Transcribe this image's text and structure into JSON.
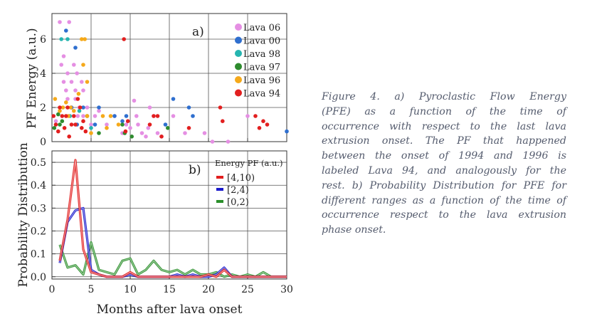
{
  "caption_lines": [
    "Figure 4. a) Pyroclastic Flow Energy",
    "(PFE) as a function of the time of",
    "occurrence with respect to the last lava",
    "extrusion onset. The PF that happened",
    "between the onset of 1994 and 1996 is",
    "labeled Lava 94, and analogously for the",
    "rest. b) Probability Distribution for PFE for",
    "different ranges as a function of the time of",
    "occurrence respect to the lava extrusion",
    "phase onset."
  ],
  "chart_data": [
    {
      "type": "scatter",
      "panel_label": "a)",
      "ylabel": "PF Energy (a.u.)",
      "xlim": [
        0,
        30
      ],
      "ylim": [
        0,
        7.5
      ],
      "xticks": [
        0,
        5,
        10,
        15,
        20,
        25,
        30
      ],
      "yticks": [
        0,
        2,
        4,
        6
      ],
      "grid": true,
      "legend_position": "top-right",
      "series": [
        {
          "name": "Lava 06",
          "color": "#e58fe3",
          "points": [
            [
              0.5,
              1.2
            ],
            [
              1.0,
              7.0
            ],
            [
              1.2,
              4.5
            ],
            [
              1.5,
              5.0
            ],
            [
              1.5,
              3.5
            ],
            [
              1.8,
              3.0
            ],
            [
              2.0,
              4.0
            ],
            [
              2.0,
              2.5
            ],
            [
              2.2,
              7.0
            ],
            [
              2.5,
              3.5
            ],
            [
              2.5,
              2.0
            ],
            [
              2.8,
              4.5
            ],
            [
              3.0,
              3.0
            ],
            [
              3.0,
              2.5
            ],
            [
              3.2,
              4.0
            ],
            [
              3.3,
              1.5
            ],
            [
              3.5,
              2.0
            ],
            [
              3.8,
              3.5
            ],
            [
              4.0,
              3.0
            ],
            [
              4.0,
              1.5
            ],
            [
              4.5,
              2.0
            ],
            [
              5.0,
              1.0
            ],
            [
              5.5,
              1.5
            ],
            [
              6.0,
              1.8
            ],
            [
              7.0,
              1.0
            ],
            [
              8.0,
              1.5
            ],
            [
              9.0,
              0.5
            ],
            [
              9.5,
              1.0
            ],
            [
              10.0,
              0.8
            ],
            [
              10.5,
              2.4
            ],
            [
              10.8,
              1.5
            ],
            [
              11.0,
              1.0
            ],
            [
              11.5,
              0.5
            ],
            [
              12.0,
              0.3
            ],
            [
              12.3,
              0.8
            ],
            [
              12.5,
              2.0
            ],
            [
              13.0,
              1.5
            ],
            [
              13.5,
              0.5
            ],
            [
              14.0,
              0.3
            ],
            [
              15.5,
              1.5
            ],
            [
              17.0,
              0.5
            ],
            [
              19.5,
              0.5
            ],
            [
              20.5,
              0.0
            ],
            [
              22.5,
              0.0
            ],
            [
              25.0,
              1.5
            ]
          ]
        },
        {
          "name": "Lava 00",
          "color": "#2f6fcf",
          "points": [
            [
              1.8,
              6.5
            ],
            [
              2.5,
              2.0
            ],
            [
              3.0,
              5.5
            ],
            [
              3.2,
              1.0
            ],
            [
              4.0,
              2.0
            ],
            [
              5.5,
              1.0
            ],
            [
              6.0,
              2.0
            ],
            [
              8.0,
              1.5
            ],
            [
              9.0,
              1.2
            ],
            [
              9.5,
              1.5
            ],
            [
              14.5,
              1.0
            ],
            [
              15.5,
              2.5
            ],
            [
              17.5,
              2.0
            ],
            [
              18.0,
              1.5
            ],
            [
              30.0,
              0.6
            ]
          ]
        },
        {
          "name": "Lava 98",
          "color": "#26b5b0",
          "points": [
            [
              1.2,
              6.0
            ],
            [
              2.0,
              6.0
            ],
            [
              2.3,
              1.5
            ],
            [
              3.5,
              1.8
            ],
            [
              5.0,
              0.8
            ]
          ]
        },
        {
          "name": "Lava 97",
          "color": "#2e8b2e",
          "points": [
            [
              0.3,
              0.8
            ],
            [
              0.8,
              1.6
            ],
            [
              1.0,
              1.0
            ],
            [
              1.3,
              1.2
            ],
            [
              4.5,
              1.5
            ],
            [
              6.0,
              0.5
            ],
            [
              9.0,
              1.0
            ],
            [
              9.3,
              0.5
            ],
            [
              10.2,
              0.3
            ],
            [
              14.8,
              0.8
            ]
          ]
        },
        {
          "name": "Lava 96",
          "color": "#f5a91a",
          "points": [
            [
              0.4,
              2.5
            ],
            [
              1.0,
              1.8
            ],
            [
              1.4,
              2.0
            ],
            [
              1.8,
              2.3
            ],
            [
              2.1,
              1.5
            ],
            [
              2.4,
              2.0
            ],
            [
              2.8,
              1.8
            ],
            [
              3.4,
              2.8
            ],
            [
              3.8,
              6.0
            ],
            [
              4.2,
              6.0
            ],
            [
              4.0,
              4.5
            ],
            [
              4.5,
              3.5
            ],
            [
              4.5,
              1.5
            ],
            [
              5.0,
              0.5
            ],
            [
              6.5,
              1.5
            ],
            [
              7.0,
              0.8
            ],
            [
              7.5,
              1.5
            ],
            [
              8.5,
              1.0
            ]
          ]
        },
        {
          "name": "Lava 94",
          "color": "#e21f1f",
          "points": [
            [
              0.2,
              1.5
            ],
            [
              0.5,
              1.0
            ],
            [
              0.8,
              0.6
            ],
            [
              1.0,
              2.0
            ],
            [
              1.3,
              1.5
            ],
            [
              1.6,
              0.8
            ],
            [
              1.8,
              1.5
            ],
            [
              2.0,
              2.0
            ],
            [
              2.2,
              0.3
            ],
            [
              2.5,
              1.0
            ],
            [
              2.8,
              1.5
            ],
            [
              3.0,
              1.0
            ],
            [
              3.3,
              2.5
            ],
            [
              3.6,
              2.0
            ],
            [
              3.8,
              0.8
            ],
            [
              4.0,
              1.2
            ],
            [
              4.3,
              0.6
            ],
            [
              9.2,
              6.0
            ],
            [
              9.7,
              1.2
            ],
            [
              9.4,
              0.6
            ],
            [
              12.5,
              1.0
            ],
            [
              13.0,
              1.5
            ],
            [
              13.5,
              1.5
            ],
            [
              14.0,
              0.3
            ],
            [
              17.5,
              0.8
            ],
            [
              21.5,
              2.0
            ],
            [
              21.8,
              1.2
            ],
            [
              26.0,
              1.5
            ],
            [
              26.5,
              0.8
            ],
            [
              27.0,
              1.2
            ],
            [
              27.5,
              1.0
            ]
          ]
        }
      ]
    },
    {
      "type": "line",
      "panel_label": "b)",
      "xlabel": "Months after lava onset",
      "ylabel": "Probability Distribution",
      "xlim": [
        0,
        30
      ],
      "ylim": [
        -0.01,
        0.55
      ],
      "xticks": [
        0,
        5,
        10,
        15,
        20,
        25,
        30
      ],
      "yticks": [
        0.0,
        0.1,
        0.2,
        0.3,
        0.4,
        0.5
      ],
      "grid": true,
      "legend_title": "Energy PF (a.u.)",
      "legend_position": "top-right",
      "x": [
        1,
        2,
        3,
        4,
        5,
        6,
        7,
        8,
        9,
        10,
        11,
        12,
        13,
        14,
        15,
        16,
        17,
        18,
        19,
        20,
        21,
        22,
        23,
        24,
        25,
        26,
        27,
        28,
        29,
        30
      ],
      "series": [
        {
          "name": "[4,10)",
          "color": "#e21f1f",
          "values": [
            0.07,
            0.25,
            0.51,
            0.12,
            0.02,
            0.01,
            0.0,
            0.0,
            0.0,
            0.02,
            0.0,
            0.0,
            0.0,
            0.0,
            0.0,
            0.0,
            0.0,
            0.0,
            0.0,
            0.01,
            0.0,
            0.03,
            0.0,
            0.0,
            0.0,
            0.0,
            0.0,
            0.0,
            0.0,
            0.0
          ]
        },
        {
          "name": "[2,4)",
          "color": "#1a1acc",
          "values": [
            0.06,
            0.24,
            0.29,
            0.3,
            0.03,
            0.01,
            0.0,
            0.0,
            0.0,
            0.01,
            0.0,
            0.0,
            0.0,
            0.0,
            0.0,
            0.01,
            0.0,
            0.01,
            0.0,
            0.0,
            0.01,
            0.04,
            0.0,
            0.0,
            0.0,
            0.0,
            0.0,
            0.0,
            0.0,
            0.0
          ]
        },
        {
          "name": "[0,2)",
          "color": "#2a8f2a",
          "values": [
            0.14,
            0.04,
            0.05,
            0.01,
            0.15,
            0.03,
            0.02,
            0.01,
            0.07,
            0.08,
            0.01,
            0.03,
            0.07,
            0.03,
            0.02,
            0.03,
            0.01,
            0.03,
            0.01,
            0.01,
            0.02,
            0.0,
            0.01,
            0.0,
            0.01,
            0.0,
            0.02,
            0.0,
            0.0,
            0.0
          ]
        }
      ]
    }
  ]
}
